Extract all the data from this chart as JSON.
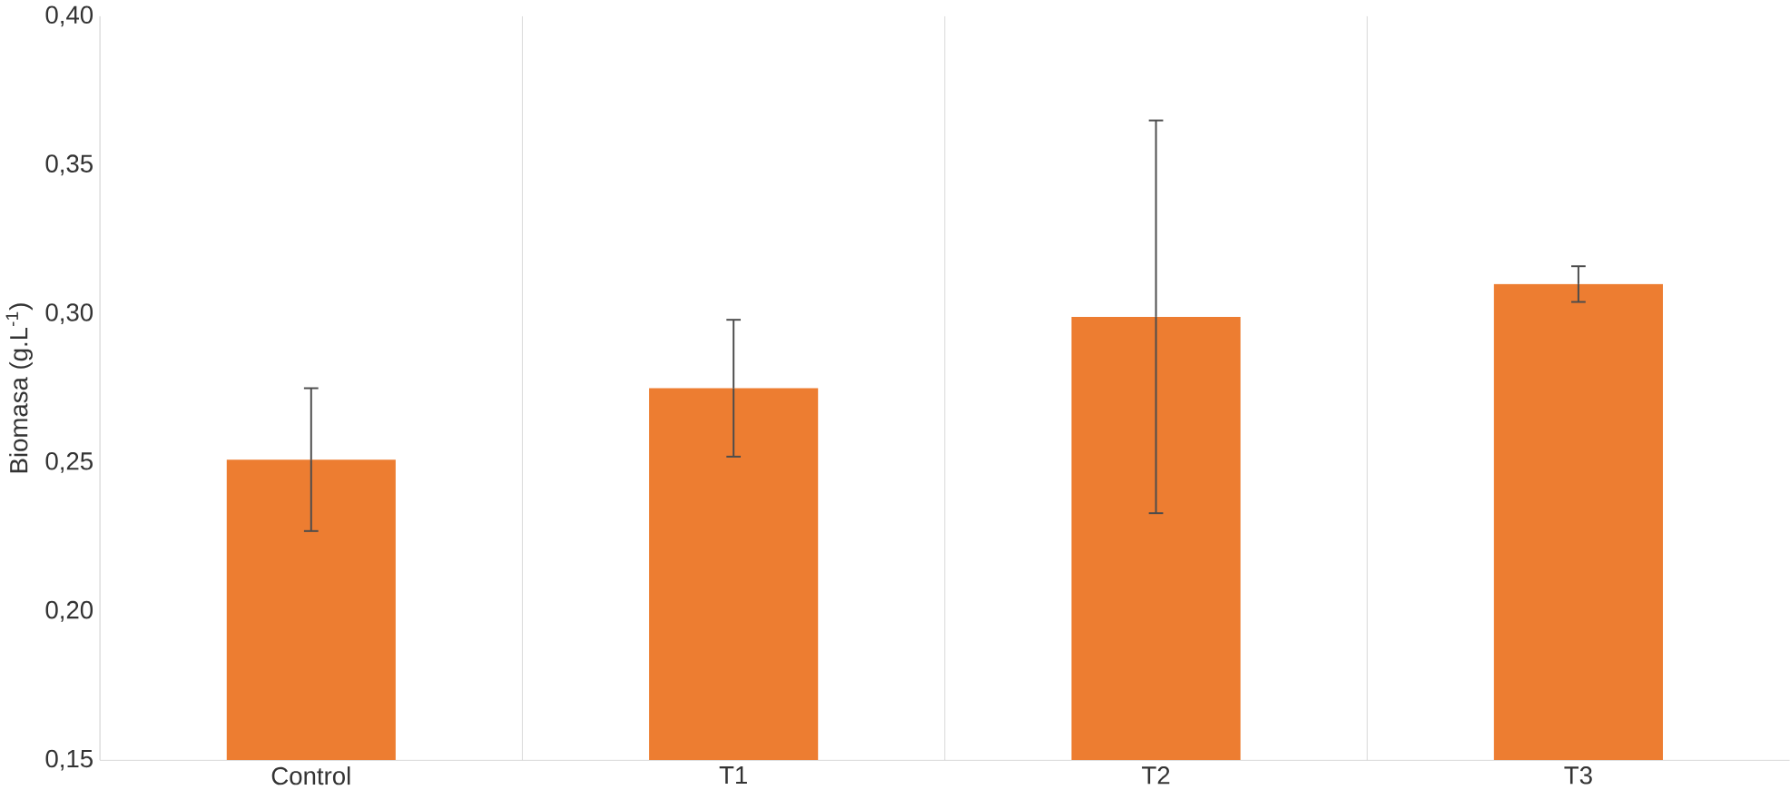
{
  "chart_data": {
    "type": "bar",
    "ylabel": "Biomasa (g.L$^{-1}$)",
    "categories": [
      "Control",
      "T1",
      "T2",
      "T3"
    ],
    "values": [
      0.251,
      0.275,
      0.299,
      0.31
    ],
    "errors": [
      0.024,
      0.023,
      0.066,
      0.006
    ],
    "color": "#ed7d31",
    "ylim": [
      0.15,
      0.4
    ],
    "yticks": [
      {
        "value": 0.15,
        "label": "0,15"
      },
      {
        "value": 0.2,
        "label": "0,20"
      },
      {
        "value": 0.25,
        "label": "0,25"
      },
      {
        "value": 0.3,
        "label": "0,30"
      },
      {
        "value": 0.35,
        "label": "0,35"
      },
      {
        "value": 0.4,
        "label": "0,40"
      }
    ],
    "grid": "x"
  }
}
